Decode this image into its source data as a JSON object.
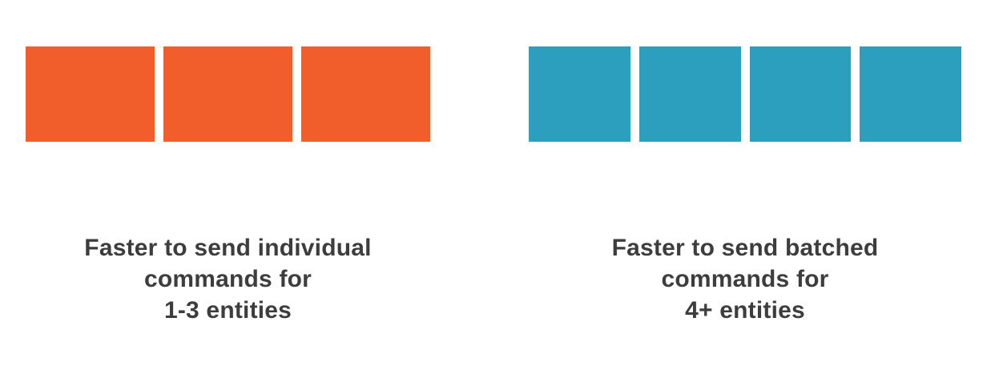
{
  "groups": [
    {
      "id": "individual",
      "color": "#f15d2b",
      "block_count": 3,
      "caption_lines": [
        "Faster to send individual",
        "commands for",
        "1-3 entities"
      ]
    },
    {
      "id": "batched",
      "color": "#2b9fbd",
      "block_count": 4,
      "caption_lines": [
        "Faster to send batched",
        "commands for",
        "4+ entities"
      ]
    }
  ]
}
